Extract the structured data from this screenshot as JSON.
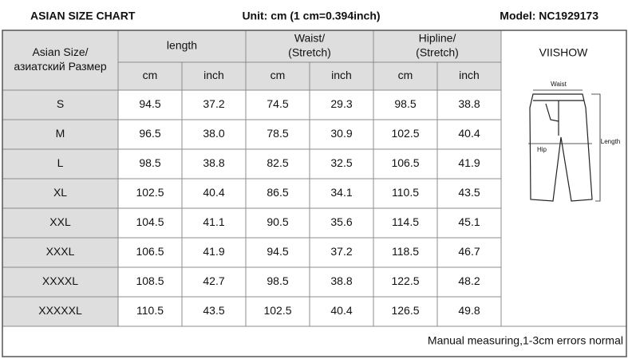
{
  "header": {
    "title": "ASIAN  SIZE CHART",
    "unit": "Unit: cm (1 cm=0.394inch)",
    "model": "Model: NC1929173"
  },
  "table": {
    "size_header": [
      "Asian Size/",
      "азиатский Размер"
    ],
    "groups": [
      [
        "length"
      ],
      [
        "Waist/",
        "(Stretch)"
      ],
      [
        "Hipline/",
        "(Stretch)"
      ]
    ],
    "units": [
      "cm",
      "inch",
      "cm",
      "inch",
      "cm",
      "inch"
    ],
    "rows": [
      [
        "S",
        "94.5",
        "37.2",
        "74.5",
        "29.3",
        "98.5",
        "38.8"
      ],
      [
        "M",
        "96.5",
        "38.0",
        "78.5",
        "30.9",
        "102.5",
        "40.4"
      ],
      [
        "L",
        "98.5",
        "38.8",
        "82.5",
        "32.5",
        "106.5",
        "41.9"
      ],
      [
        "XL",
        "102.5",
        "40.4",
        "86.5",
        "34.1",
        "110.5",
        "43.5"
      ],
      [
        "XXL",
        "104.5",
        "41.1",
        "90.5",
        "35.6",
        "114.5",
        "45.1"
      ],
      [
        "XXXL",
        "106.5",
        "41.9",
        "94.5",
        "37.2",
        "118.5",
        "46.7"
      ],
      [
        "XXXXL",
        "108.5",
        "42.7",
        "98.5",
        "38.8",
        "122.5",
        "48.2"
      ],
      [
        "XXXXXL",
        "110.5",
        "43.5",
        "102.5",
        "40.4",
        "126.5",
        "49.8"
      ]
    ]
  },
  "diagram": {
    "brand": "VIISHOW",
    "labels": [
      "Waist",
      "Hip",
      "Length"
    ]
  },
  "footer": "Manual measuring,1-3cm errors normal"
}
